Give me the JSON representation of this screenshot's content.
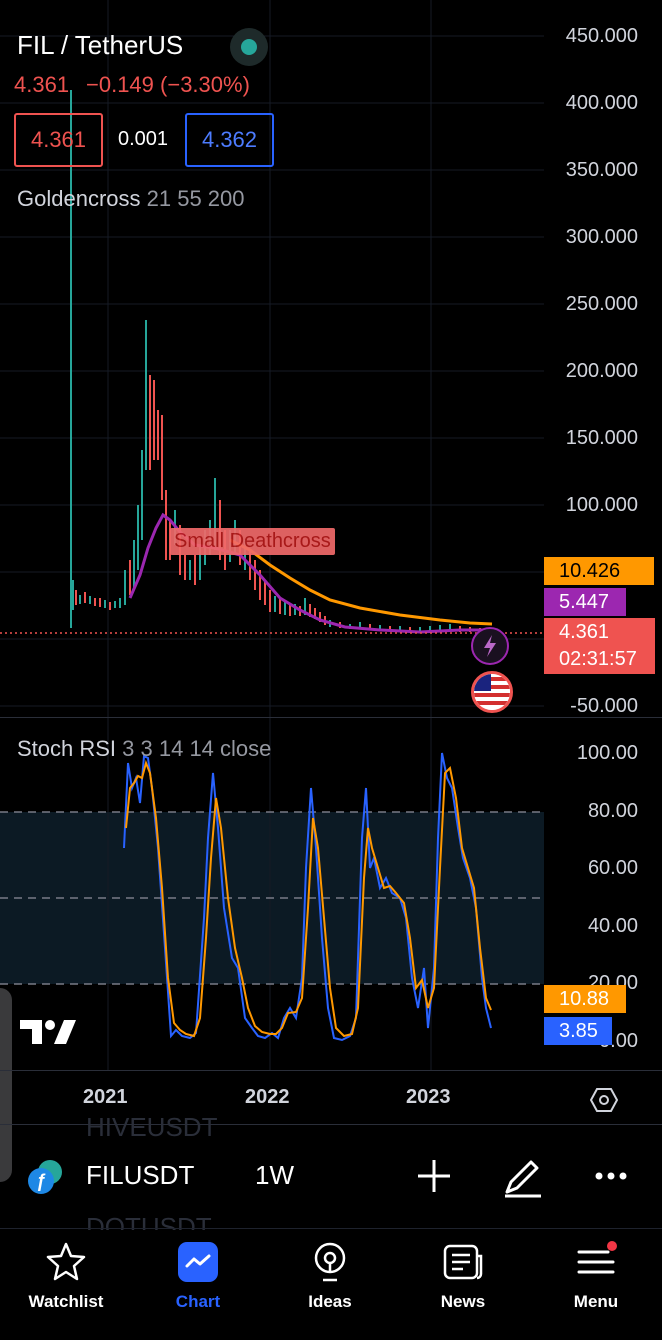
{
  "header": {
    "symbol_title": "FIL / TetherUS",
    "last_price": "4.361",
    "change": "−0.149 (−3.30%)",
    "bid": "4.361",
    "spread": "0.001",
    "ask": "4.362"
  },
  "indicator": {
    "name": "Goldencross",
    "params": "21 55 200",
    "annotation": "Small Deathcross"
  },
  "price_axis": {
    "ticks": [
      "450.000",
      "400.000",
      "350.000",
      "300.000",
      "250.000",
      "200.000",
      "150.000",
      "100.000",
      "-50.000"
    ],
    "tags": {
      "ma_orange": "10.426",
      "ma_purple": "5.447",
      "last": "4.361",
      "countdown": "02:31:57"
    }
  },
  "stoch": {
    "title": "Stoch RSI",
    "params": "3 3 14 14 close",
    "ticks": [
      "100.00",
      "80.00",
      "60.00",
      "40.00",
      "20.00",
      "0.00"
    ],
    "tags": {
      "d_orange": "10.88",
      "k_blue": "3.85"
    }
  },
  "time_axis": {
    "labels": [
      "2021",
      "2022",
      "2023"
    ]
  },
  "toolbar": {
    "symbol": "FILUSDT",
    "interval": "1W",
    "peek_above": "HIVEUSDT",
    "peek_below": "DOTUSDT"
  },
  "bottom_nav": [
    {
      "label": "Watchlist"
    },
    {
      "label": "Chart"
    },
    {
      "label": "Ideas"
    },
    {
      "label": "News"
    },
    {
      "label": "Menu"
    }
  ],
  "colors": {
    "up": "#26a69a",
    "down": "#ef5350",
    "orange": "#ff9800",
    "purple": "#9c27b0",
    "blue": "#2962ff",
    "accent": "#2962ff"
  }
}
